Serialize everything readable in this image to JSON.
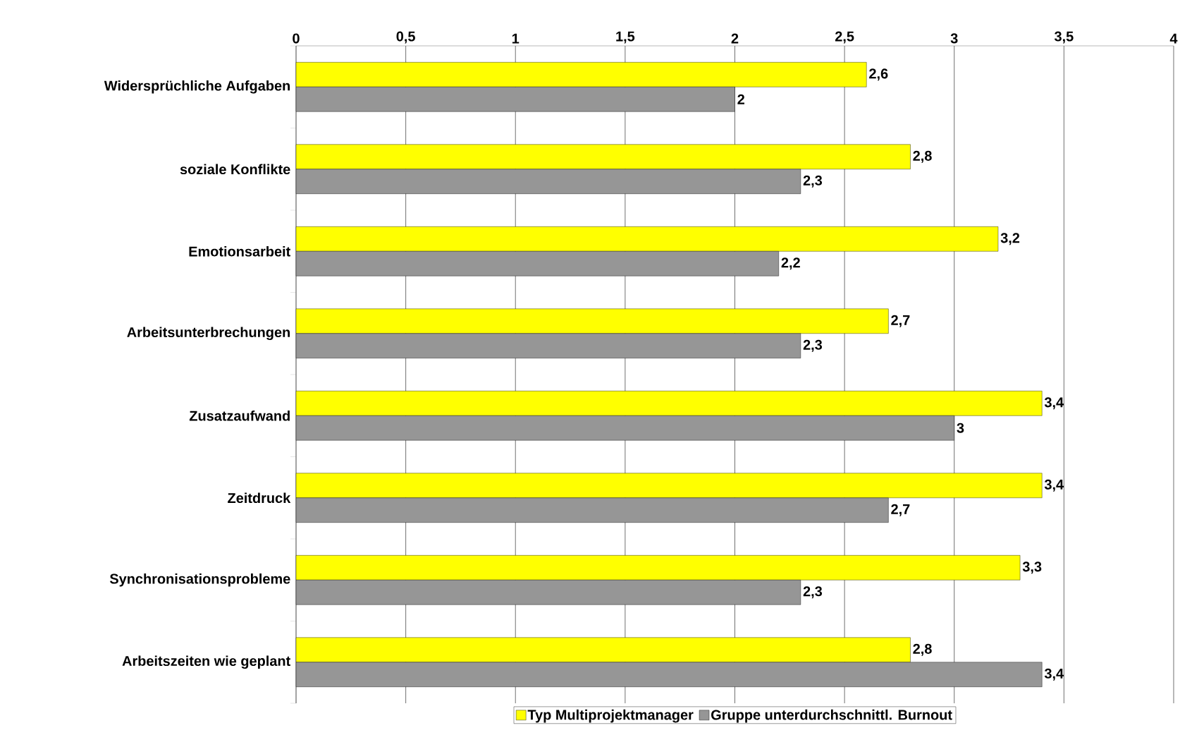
{
  "chart_data": {
    "type": "bar",
    "orientation": "horizontal",
    "categories": [
      "Widersprüchliche Aufgaben",
      "soziale Konflikte",
      "Emotionsarbeit",
      "Arbeitsunterbrechungen",
      "Zusatzaufwand",
      "Zeitdruck",
      "Synchronisationsprobleme",
      "Arbeitszeiten wie geplant"
    ],
    "series": [
      {
        "name": "Typ Multiprojektmanager",
        "color": "#ffff00",
        "values": [
          2.6,
          2.8,
          3.2,
          2.7,
          3.4,
          3.4,
          3.3,
          2.8
        ],
        "value_labels": [
          "2,6",
          "2,8",
          "3,2",
          "2,7",
          "3,4",
          "3,4",
          "3,3",
          "2,8"
        ]
      },
      {
        "name": "Gruppe unterdurchschnittl. Burnout",
        "color": "#969696",
        "values": [
          2,
          2.3,
          2.2,
          2.3,
          3,
          2.7,
          2.3,
          3.4
        ],
        "value_labels": [
          "2",
          "2,3",
          "2,2",
          "2,3",
          "3",
          "2,7",
          "2,3",
          "3,4"
        ]
      }
    ],
    "xlim": [
      0,
      4
    ],
    "xticks": [
      0,
      {
        "value": 0.5,
        "label": "0,5"
      },
      1,
      {
        "value": 1.5,
        "label": "1,5"
      },
      2,
      {
        "value": 2.5,
        "label": "2,5"
      },
      3,
      {
        "value": 3.5,
        "label": "3,5"
      },
      4
    ],
    "grid": "x",
    "legend": "bottom"
  }
}
